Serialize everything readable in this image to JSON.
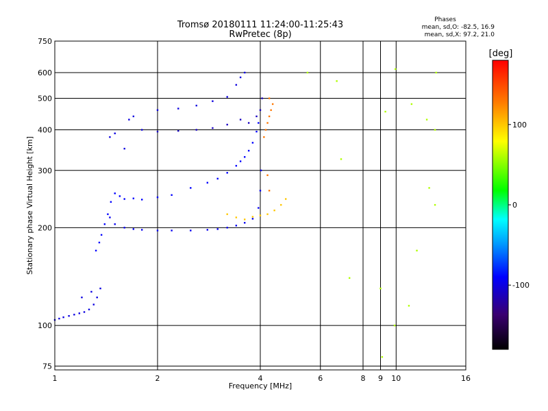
{
  "chart_data": {
    "type": "scatter",
    "title": "Tromsø 20180111 11:24:00-11:25:43",
    "subtitle": "RwPretec (8p)",
    "xlabel": "Frequency [MHz]",
    "ylabel": "Stationary phase Virtual Height [km]",
    "x_scale": "log",
    "y_scale": "log",
    "xlim": [
      1,
      16
    ],
    "ylim": [
      73,
      750
    ],
    "x_ticks": [
      1,
      2,
      4,
      6,
      8,
      9,
      10,
      16
    ],
    "x_tick_labels": [
      "1",
      "2",
      "4",
      "6",
      "8",
      "9",
      "10",
      "16"
    ],
    "y_ticks": [
      75,
      100,
      200,
      300,
      400,
      500,
      600,
      750
    ],
    "y_tick_labels": [
      "75",
      "100",
      "200",
      "300",
      "400",
      "500",
      "600",
      "750"
    ],
    "grid": true,
    "phase_stats": {
      "title": "Phases",
      "line_o": "mean, sd,O: -82.5, 16.9",
      "line_x": "mean, sd,X:  97.2, 21.0"
    },
    "colorbar": {
      "label": "[deg]",
      "range": [
        -180,
        180
      ],
      "ticks": [
        100,
        0,
        -100
      ],
      "tick_labels": [
        "100",
        "0",
        "-100"
      ]
    },
    "series": [
      {
        "points": [
          [
            1.0,
            104
          ],
          [
            1.03,
            105
          ],
          [
            1.06,
            106
          ],
          [
            1.1,
            107
          ],
          [
            1.14,
            108
          ],
          [
            1.18,
            109
          ],
          [
            1.22,
            110
          ],
          [
            1.26,
            112
          ],
          [
            1.3,
            116
          ],
          [
            1.33,
            122
          ],
          [
            1.36,
            130
          ],
          [
            1.28,
            127
          ],
          [
            1.2,
            122
          ]
        ],
        "phase": -100
      },
      {
        "points": [
          [
            1.32,
            170
          ],
          [
            1.35,
            180
          ],
          [
            1.37,
            190
          ],
          [
            1.4,
            205
          ],
          [
            1.43,
            220
          ],
          [
            1.46,
            240
          ],
          [
            1.5,
            255
          ],
          [
            1.55,
            250
          ],
          [
            1.6,
            245
          ],
          [
            1.7,
            246
          ],
          [
            1.8,
            244
          ],
          [
            2.0,
            248
          ],
          [
            2.2,
            252
          ],
          [
            2.5,
            265
          ],
          [
            2.8,
            275
          ],
          [
            3.0,
            283
          ],
          [
            3.2,
            295
          ],
          [
            3.4,
            310
          ],
          [
            3.5,
            320
          ],
          [
            3.6,
            330
          ],
          [
            3.7,
            345
          ],
          [
            3.8,
            365
          ],
          [
            3.9,
            395
          ],
          [
            3.95,
            420
          ]
        ],
        "phase": -90
      },
      {
        "points": [
          [
            1.45,
            215
          ],
          [
            1.5,
            205
          ],
          [
            1.6,
            200
          ],
          [
            1.7,
            198
          ],
          [
            1.8,
            197
          ],
          [
            2.0,
            196
          ],
          [
            2.2,
            196
          ],
          [
            2.5,
            196
          ],
          [
            2.8,
            197
          ],
          [
            3.0,
            198
          ],
          [
            3.2,
            200
          ],
          [
            3.4,
            203
          ],
          [
            3.6,
            207
          ],
          [
            3.8,
            213
          ],
          [
            3.95,
            230
          ],
          [
            4.0,
            260
          ],
          [
            4.02,
            300
          ]
        ],
        "phase": -95
      },
      {
        "points": [
          [
            1.45,
            380
          ],
          [
            1.5,
            390
          ],
          [
            1.6,
            350
          ],
          [
            1.65,
            430
          ],
          [
            1.7,
            440
          ],
          [
            1.8,
            400
          ],
          [
            2.0,
            460
          ],
          [
            2.3,
            465
          ],
          [
            2.6,
            475
          ],
          [
            2.9,
            490
          ],
          [
            3.2,
            505
          ],
          [
            3.4,
            550
          ],
          [
            3.5,
            580
          ],
          [
            3.6,
            600
          ]
        ],
        "phase": -100
      },
      {
        "points": [
          [
            2.0,
            395
          ],
          [
            2.3,
            397
          ],
          [
            2.6,
            400
          ],
          [
            2.9,
            405
          ],
          [
            3.2,
            415
          ],
          [
            3.5,
            430
          ],
          [
            3.7,
            420
          ],
          [
            3.9,
            440
          ],
          [
            4.0,
            460
          ],
          [
            4.05,
            500
          ]
        ],
        "phase": -110
      },
      {
        "points": [
          [
            3.2,
            220
          ],
          [
            3.4,
            215
          ],
          [
            3.6,
            212
          ],
          [
            3.8,
            216
          ],
          [
            4.0,
            218
          ],
          [
            4.2,
            220
          ],
          [
            4.4,
            226
          ],
          [
            4.6,
            235
          ],
          [
            4.75,
            245
          ]
        ],
        "phase": 100
      },
      {
        "points": [
          [
            4.1,
            380
          ],
          [
            4.15,
            400
          ],
          [
            4.2,
            420
          ],
          [
            4.25,
            440
          ],
          [
            4.3,
            460
          ],
          [
            4.35,
            480
          ],
          [
            4.25,
            500
          ],
          [
            4.2,
            290
          ],
          [
            4.25,
            260
          ]
        ],
        "phase": 130
      },
      {
        "points": [
          [
            5.5,
            600
          ],
          [
            6.7,
            565
          ],
          [
            6.9,
            325
          ],
          [
            7.3,
            140
          ],
          [
            9.0,
            130
          ],
          [
            9.3,
            455
          ],
          [
            9.9,
            100
          ],
          [
            9.95,
            615
          ],
          [
            10.9,
            115
          ],
          [
            11.1,
            480
          ],
          [
            11.5,
            170
          ],
          [
            12.3,
            430
          ],
          [
            12.5,
            265
          ],
          [
            13.1,
            600
          ],
          [
            13.0,
            400
          ],
          [
            13.0,
            235
          ],
          [
            9.1,
            80
          ]
        ],
        "phase": 60
      }
    ]
  }
}
